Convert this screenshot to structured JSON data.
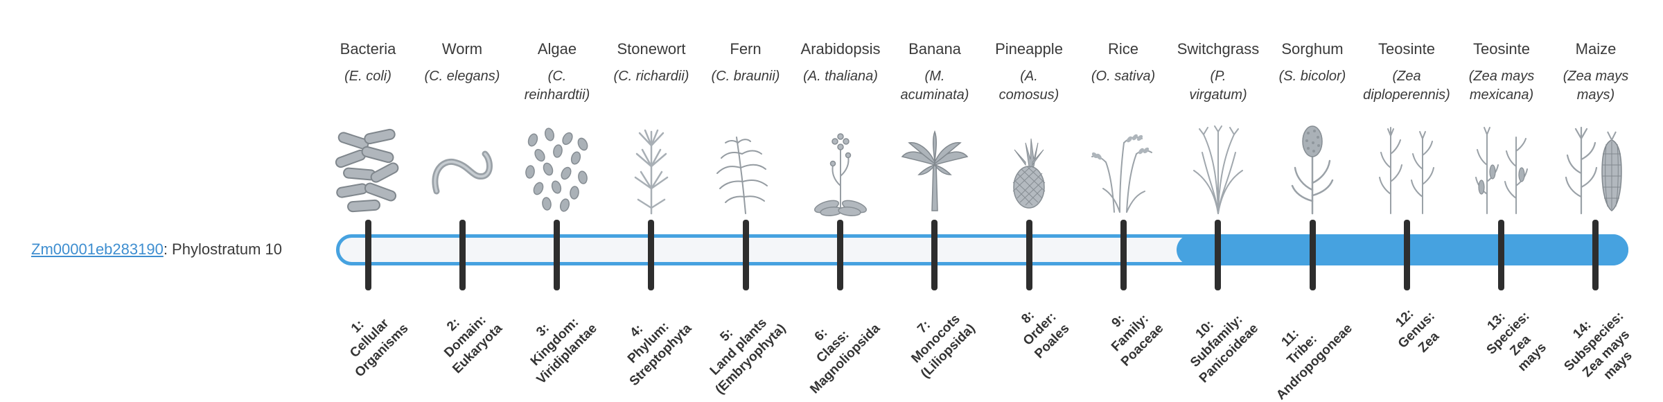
{
  "gene": {
    "id": "Zm00001eb283190",
    "suffix": ": Phylostratum 10"
  },
  "colors": {
    "accent_blue": "#46A2E0",
    "track_fill": "#F4F6F9",
    "tick": "#2E2E2E",
    "link_blue": "#3E8ED0",
    "text": "#3A3A3A",
    "illustration_gray": "#9AA1A7"
  },
  "timeline": {
    "total_strata": 14,
    "gene_stratum": 10,
    "filled_from_stratum": 10
  },
  "organisms": [
    {
      "stratum": "1",
      "common_name": "Bacteria",
      "scientific_name": "(E. coli)",
      "icon": "bacteria-icon",
      "clade_label": "1:\nCellular\nOrganisms"
    },
    {
      "stratum": "2",
      "common_name": "Worm",
      "scientific_name": "(C. elegans)",
      "icon": "worm-icon",
      "clade_label": "2:\nDomain:\nEukaryota"
    },
    {
      "stratum": "3",
      "common_name": "Algae",
      "scientific_name": "(C.\nreinhardtii)",
      "icon": "algae-icon",
      "clade_label": "3:\nKingdom:\nViridiplantae"
    },
    {
      "stratum": "4",
      "common_name": "Stonewort",
      "scientific_name": "(C. richardii)",
      "icon": "stonewort-icon",
      "clade_label": "4:\nPhylum:\nStreptophyta"
    },
    {
      "stratum": "5",
      "common_name": "Fern",
      "scientific_name": "(C. braunii)",
      "icon": "fern-icon",
      "clade_label": "5:\nLand plants\n(Embryophyta)"
    },
    {
      "stratum": "6",
      "common_name": "Arabidopsis",
      "scientific_name": "(A. thaliana)",
      "icon": "arabidopsis-icon",
      "clade_label": "6:\nClass:\nMagnoliopsida"
    },
    {
      "stratum": "7",
      "common_name": "Banana",
      "scientific_name": "(M.\nacuminata)",
      "icon": "banana-icon",
      "clade_label": "7:\nMonocots\n(Liliopsida)"
    },
    {
      "stratum": "8",
      "common_name": "Pineapple",
      "scientific_name": "(A.\ncomosus)",
      "icon": "pineapple-icon",
      "clade_label": "8:\nOrder:\nPoales"
    },
    {
      "stratum": "9",
      "common_name": "Rice",
      "scientific_name": "(O. sativa)",
      "icon": "rice-icon",
      "clade_label": "9:\nFamily:\nPoaceae"
    },
    {
      "stratum": "10",
      "common_name": "Switchgrass",
      "scientific_name": "(P.\nvirgatum)",
      "icon": "switchgrass-icon",
      "clade_label": "10:\nSubfamily:\nPanicoideae"
    },
    {
      "stratum": "11",
      "common_name": "Sorghum",
      "scientific_name": "(S. bicolor)",
      "icon": "sorghum-icon",
      "clade_label": "11:\nTribe:\nAndropogoneae"
    },
    {
      "stratum": "12",
      "common_name": "Teosinte",
      "scientific_name": "(Zea\ndiploperennis)",
      "icon": "teosinte-diploperennis-icon",
      "clade_label": "12:\nGenus:\nZea"
    },
    {
      "stratum": "13",
      "common_name": "Teosinte",
      "scientific_name": "(Zea mays\nmexicana)",
      "icon": "teosinte-mexicana-icon",
      "clade_label": "13:\nSpecies:\nZea\nmays"
    },
    {
      "stratum": "14",
      "common_name": "Maize",
      "scientific_name": "(Zea mays\nmays)",
      "icon": "maize-icon",
      "clade_label": "14:\nSubspecies:\nZea mays\nmays"
    }
  ]
}
